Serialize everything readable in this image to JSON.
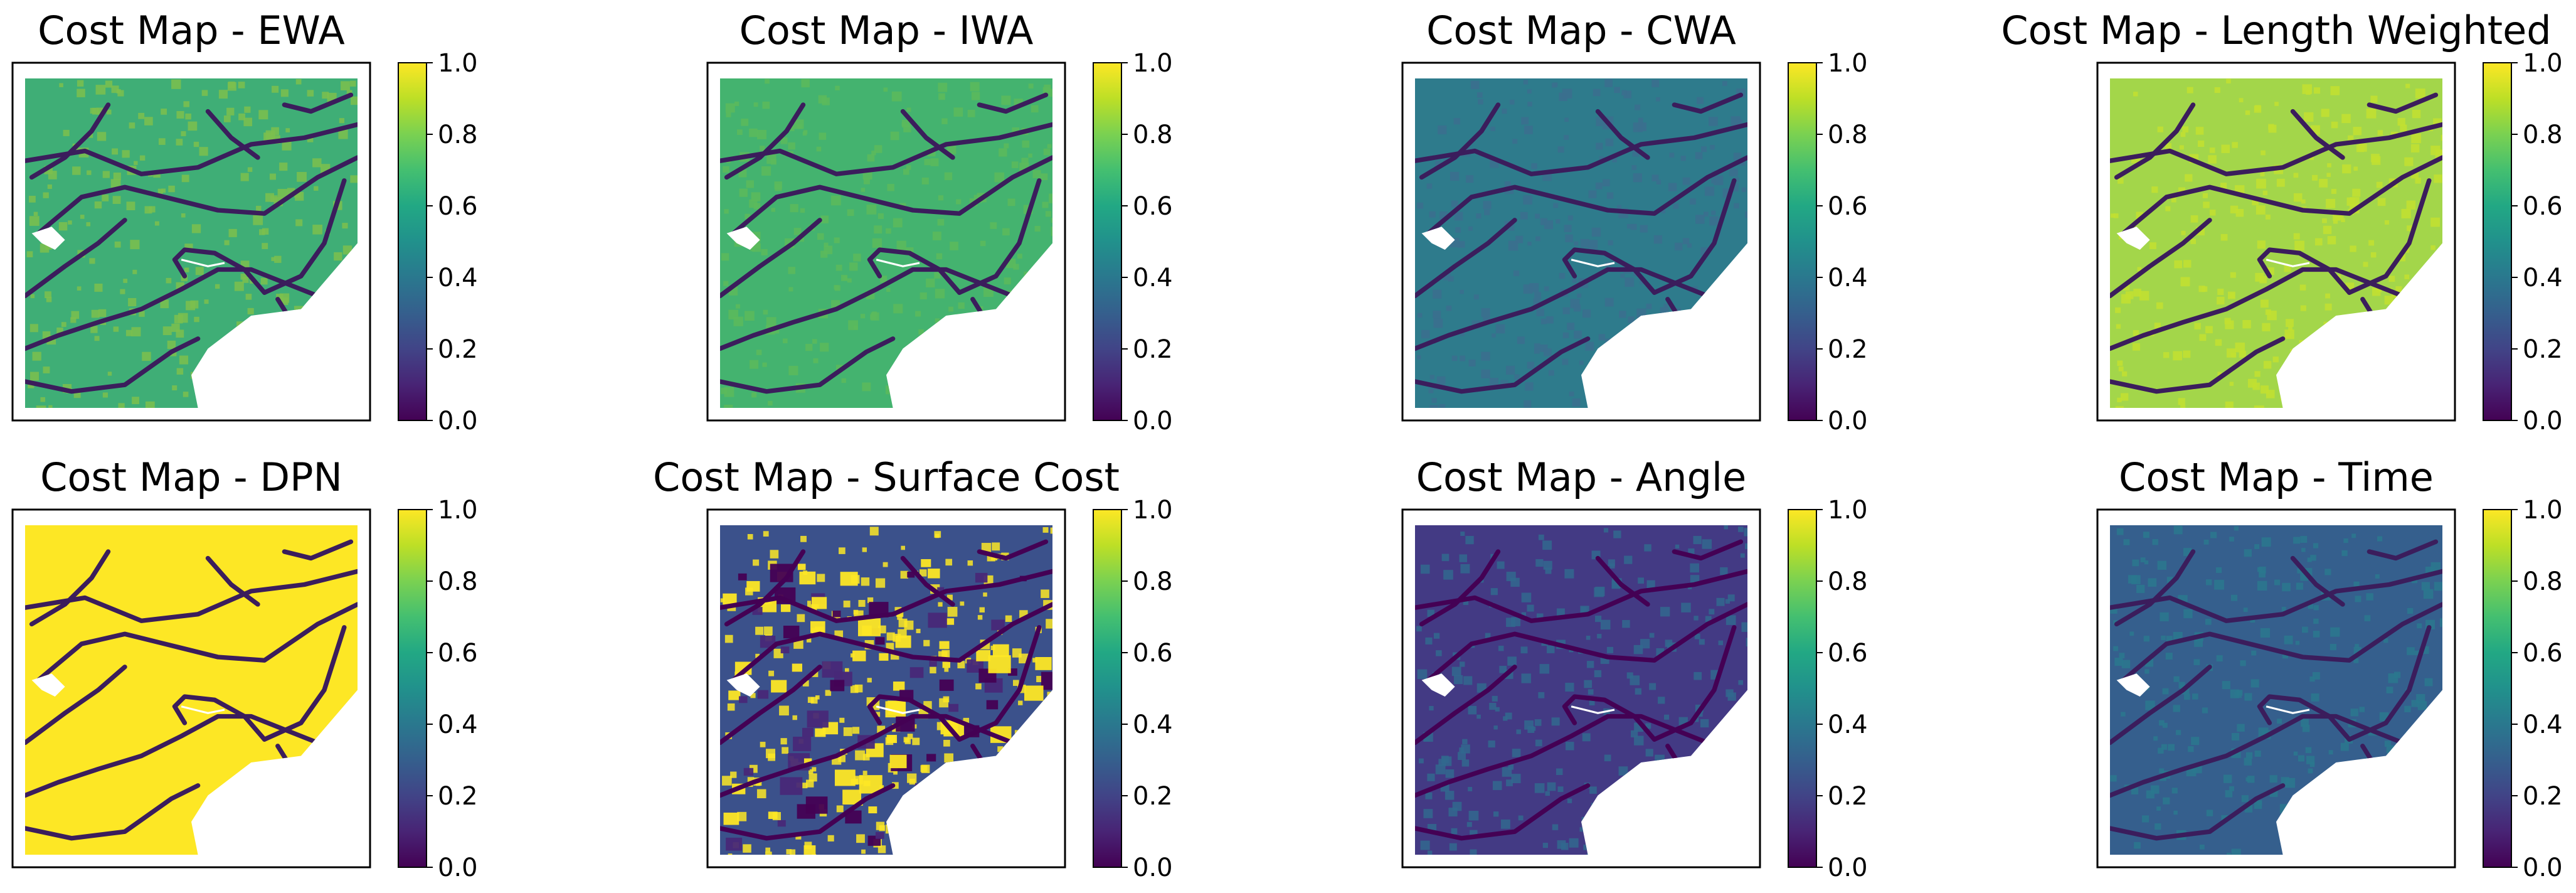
{
  "figure": {
    "panels": [
      {
        "title": "Cost Map - EWA",
        "base": "#3fae76",
        "speckle": "#7cc04d",
        "road": "#3b1d5c",
        "dark_bg": false,
        "patches": false
      },
      {
        "title": "Cost Map - IWA",
        "base": "#44b36f",
        "speckle": "#5cba5c",
        "road": "#3b1d5c",
        "dark_bg": false,
        "patches": false
      },
      {
        "title": "Cost Map - CWA",
        "base": "#2e7b8c",
        "speckle": "#3b6f8e",
        "road": "#3b1d5c",
        "dark_bg": false,
        "patches": false
      },
      {
        "title": "Cost Map - Length Weighted",
        "base": "#a3d64a",
        "speckle": "#c3e030",
        "road": "#3b1d5c",
        "dark_bg": false,
        "patches": false
      },
      {
        "title": "Cost Map - DPN",
        "base": "#fde725",
        "speckle": "#fde725",
        "road": "#3b1d5c",
        "dark_bg": false,
        "patches": false
      },
      {
        "title": "Cost Map - Surface Cost",
        "base": "#3b518b",
        "speckle": "#fde725",
        "road": "#440154",
        "dark_bg": true,
        "patches": true
      },
      {
        "title": "Cost Map - Angle",
        "base": "#433a84",
        "speckle": "#31688e",
        "road": "#440154",
        "dark_bg": true,
        "patches": false
      },
      {
        "title": "Cost Map - Time",
        "base": "#355f8d",
        "speckle": "#2a788e",
        "road": "#3b1d5c",
        "dark_bg": false,
        "patches": false
      }
    ]
  },
  "chart_data": {
    "type": "heatmap",
    "layout": "2x4 grid",
    "colormap": "viridis",
    "colorbar": {
      "range": [
        0.0,
        1.0
      ],
      "ticks": [
        "0.0",
        "0.2",
        "0.4",
        "0.6",
        "0.8",
        "1.0"
      ]
    },
    "titles": [
      "Cost Map - EWA",
      "Cost Map - IWA",
      "Cost Map - CWA",
      "Cost Map - Length Weighted",
      "Cost Map - DPN",
      "Cost Map - Surface Cost",
      "Cost Map - Angle",
      "Cost Map - Time"
    ],
    "approx_mean_cost": [
      0.65,
      0.65,
      0.4,
      0.8,
      1.0,
      0.25,
      0.15,
      0.35
    ],
    "road_cost": 0.0
  }
}
